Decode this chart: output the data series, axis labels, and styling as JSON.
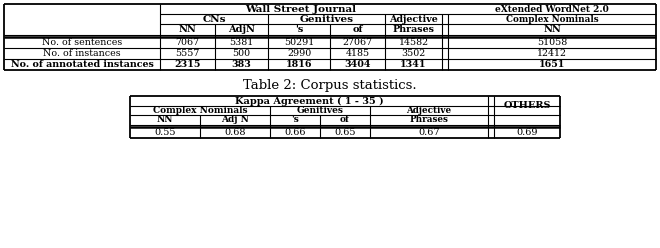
{
  "caption": "Table 2: Corpus statistics.",
  "table1": {
    "row_labels": [
      "No. of sentences",
      "No. of instances",
      "No. of annotated instances"
    ],
    "data": [
      [
        "7067",
        "5381",
        "50291",
        "27067",
        "14582",
        "51058"
      ],
      [
        "5557",
        "500",
        "2990",
        "4185",
        "3502",
        "12412"
      ],
      [
        "2315",
        "383",
        "1816",
        "3404",
        "1341",
        "1651"
      ]
    ],
    "row_bold": [
      false,
      false,
      true
    ]
  },
  "table2": {
    "title": "Kappa Agreement ( 1 - 35 )",
    "data": [
      "0.55",
      "0.68",
      "0.66",
      "0.65",
      "0.67",
      "0.69"
    ]
  }
}
